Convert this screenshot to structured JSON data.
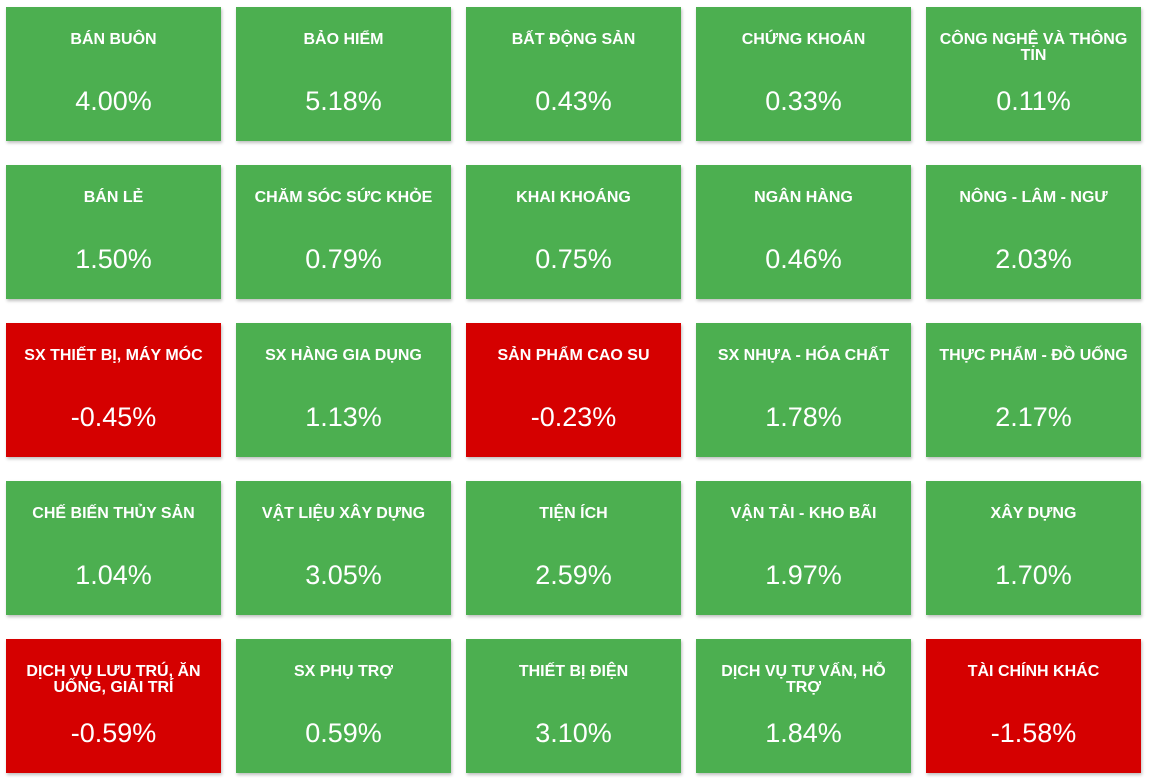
{
  "colors": {
    "up": "#4caf50",
    "down": "#d50000",
    "text": "#ffffff"
  },
  "sectors": [
    {
      "name": "BÁN BUÔN",
      "value": "4.00%",
      "direction": "up"
    },
    {
      "name": "BẢO HIỂM",
      "value": "5.18%",
      "direction": "up"
    },
    {
      "name": "BẤT ĐỘNG SẢN",
      "value": "0.43%",
      "direction": "up"
    },
    {
      "name": "CHỨNG KHOÁN",
      "value": "0.33%",
      "direction": "up"
    },
    {
      "name": "CÔNG NGHỆ VÀ THÔNG TIN",
      "value": "0.11%",
      "direction": "up"
    },
    {
      "name": "BÁN LẺ",
      "value": "1.50%",
      "direction": "up"
    },
    {
      "name": "CHĂM SÓC SỨC KHỎE",
      "value": "0.79%",
      "direction": "up"
    },
    {
      "name": "KHAI KHOÁNG",
      "value": "0.75%",
      "direction": "up"
    },
    {
      "name": "NGÂN HÀNG",
      "value": "0.46%",
      "direction": "up"
    },
    {
      "name": "NÔNG - LÂM - NGƯ",
      "value": "2.03%",
      "direction": "up"
    },
    {
      "name": "SX THIẾT BỊ, MÁY MÓC",
      "value": "-0.45%",
      "direction": "down"
    },
    {
      "name": "SX HÀNG GIA DỤNG",
      "value": "1.13%",
      "direction": "up"
    },
    {
      "name": "SẢN PHẨM CAO SU",
      "value": "-0.23%",
      "direction": "down"
    },
    {
      "name": "SX NHỰA - HÓA CHẤT",
      "value": "1.78%",
      "direction": "up"
    },
    {
      "name": "THỰC PHẨM - ĐỒ UỐNG",
      "value": "2.17%",
      "direction": "up"
    },
    {
      "name": "CHẾ BIẾN THỦY SẢN",
      "value": "1.04%",
      "direction": "up"
    },
    {
      "name": "VẬT LIỆU XÂY DỰNG",
      "value": "3.05%",
      "direction": "up"
    },
    {
      "name": "TIỆN ÍCH",
      "value": "2.59%",
      "direction": "up"
    },
    {
      "name": "VẬN TẢI - KHO BÃI",
      "value": "1.97%",
      "direction": "up"
    },
    {
      "name": "XÂY DỰNG",
      "value": "1.70%",
      "direction": "up"
    },
    {
      "name": "DỊCH VỤ LƯU TRÚ, ĂN UỐNG, GIẢI TRÍ",
      "value": "-0.59%",
      "direction": "down"
    },
    {
      "name": "SX PHỤ TRỢ",
      "value": "0.59%",
      "direction": "up"
    },
    {
      "name": "THIẾT BỊ ĐIỆN",
      "value": "3.10%",
      "direction": "up"
    },
    {
      "name": "DỊCH VỤ TƯ VẤN, HỖ TRỢ",
      "value": "1.84%",
      "direction": "up"
    },
    {
      "name": "TÀI CHÍNH KHÁC",
      "value": "-1.58%",
      "direction": "down"
    }
  ]
}
